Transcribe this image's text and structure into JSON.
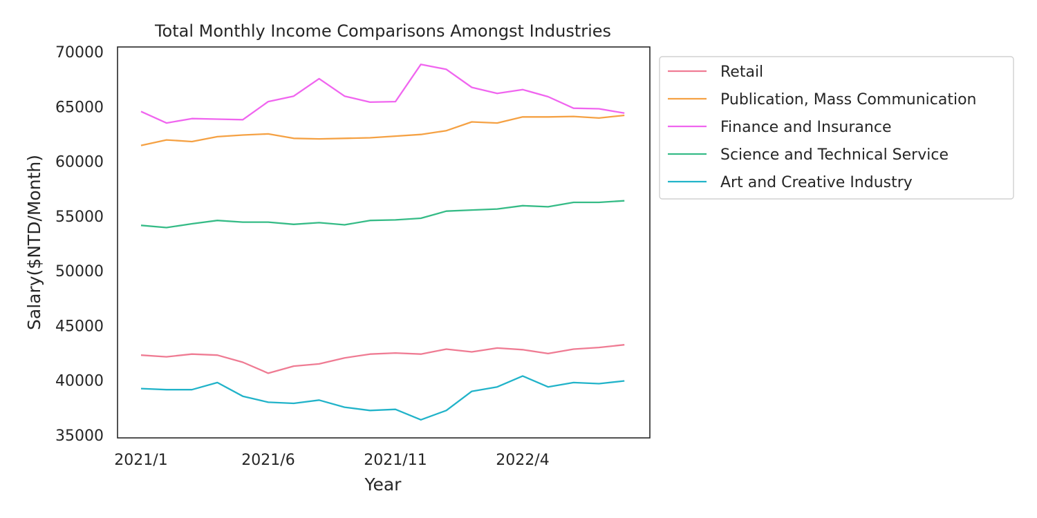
{
  "chart_data": {
    "type": "line",
    "title": "Total Monthly Income Comparisons Amongst Industries",
    "xlabel": "Year",
    "ylabel": "Salary($NTD/Month)",
    "ylim": [
      35000,
      70000
    ],
    "yticks": [
      35000,
      40000,
      45000,
      50000,
      55000,
      60000,
      65000,
      70000
    ],
    "x": [
      "2021/1",
      "2021/2",
      "2021/3",
      "2021/4",
      "2021/5",
      "2021/6",
      "2021/7",
      "2021/8",
      "2021/9",
      "2021/10",
      "2021/11",
      "2021/12",
      "2022/1",
      "2022/2",
      "2022/3",
      "2022/4",
      "2022/5",
      "2022/6",
      "2022/7",
      "2022/8"
    ],
    "xticks": [
      "2021/1",
      "2021/6",
      "2021/11",
      "2022/4"
    ],
    "grid": false,
    "legend_position": "outside-upper-right",
    "series": [
      {
        "name": "Retail",
        "color": "#ef7b93",
        "values": [
          42300,
          42150,
          42400,
          42300,
          41650,
          40650,
          41300,
          41500,
          42050,
          42400,
          42500,
          42400,
          42850,
          42600,
          42950,
          42800,
          42450,
          42850,
          43000,
          43250
        ]
      },
      {
        "name": "Publication, Mass Communication",
        "color": "#f5a143",
        "values": [
          61450,
          61950,
          61800,
          62250,
          62400,
          62500,
          62100,
          62050,
          62100,
          62150,
          62300,
          62450,
          62800,
          63600,
          63500,
          64050,
          64050,
          64100,
          63950,
          64200
        ]
      },
      {
        "name": "Finance and Insurance",
        "color": "#f065ef",
        "values": [
          64550,
          63500,
          63900,
          63850,
          63800,
          65450,
          65950,
          67550,
          65950,
          65400,
          65450,
          68850,
          68400,
          66750,
          66200,
          66550,
          65900,
          64850,
          64800,
          64400
        ]
      },
      {
        "name": "Science and Technical Service",
        "color": "#35bb86",
        "values": [
          54150,
          53950,
          54300,
          54600,
          54450,
          54450,
          54250,
          54400,
          54200,
          54600,
          54650,
          54800,
          55450,
          55550,
          55650,
          55950,
          55850,
          56250,
          56250,
          56400
        ]
      },
      {
        "name": "Art and Creative Industry",
        "color": "#21b3c9",
        "values": [
          39250,
          39150,
          39150,
          39800,
          38550,
          38000,
          37900,
          38200,
          37550,
          37250,
          37350,
          36400,
          37250,
          39000,
          39400,
          40400,
          39400,
          39800,
          39700,
          39950
        ]
      }
    ]
  }
}
